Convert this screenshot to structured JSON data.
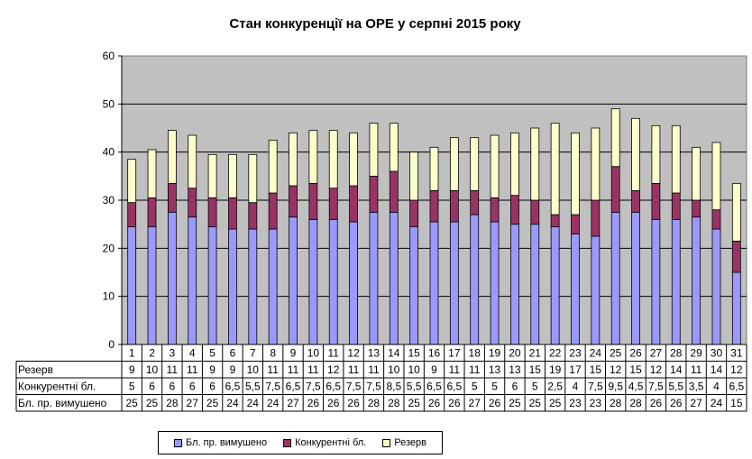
{
  "chart_data": {
    "type": "bar",
    "stacked": true,
    "title": "Стан конкуренції на ОРЕ  у серпні 2015 року",
    "ylim": [
      0,
      60
    ],
    "yticks": [
      0,
      10,
      20,
      30,
      40,
      50,
      60
    ],
    "grid": true,
    "legend_placement": "bottom",
    "categories": [
      "1",
      "2",
      "3",
      "4",
      "5",
      "6",
      "7",
      "8",
      "9",
      "10",
      "11",
      "12",
      "13",
      "14",
      "15",
      "16",
      "17",
      "18",
      "19",
      "20",
      "21",
      "22",
      "23",
      "24",
      "25",
      "26",
      "27",
      "28",
      "29",
      "30",
      "31"
    ],
    "series": [
      {
        "name": "Бл. пр. вимушено",
        "color": "#9999ff",
        "values": [
          24.5,
          24.5,
          27.5,
          26.5,
          24.5,
          24,
          24,
          24,
          26.5,
          26,
          26,
          25.5,
          27.5,
          27.5,
          24.5,
          25.5,
          25.5,
          27,
          25.5,
          25,
          25,
          24.5,
          23,
          22.5,
          27.5,
          27.5,
          26,
          26,
          26.5,
          24,
          15
        ],
        "table_labels": [
          "25",
          "25",
          "28",
          "27",
          "25",
          "24",
          "24",
          "24",
          "27",
          "26",
          "26",
          "26",
          "28",
          "28",
          "25",
          "26",
          "26",
          "27",
          "26",
          "25",
          "25",
          "25",
          "23",
          "23",
          "28",
          "28",
          "26",
          "26",
          "27",
          "24",
          "15"
        ]
      },
      {
        "name": "Конкурентні бл.",
        "color": "#993366",
        "values": [
          5,
          6,
          6,
          6,
          6,
          6.5,
          5.5,
          7.5,
          6.5,
          7.5,
          6.5,
          7.5,
          7.5,
          8.5,
          5.5,
          6.5,
          6.5,
          5,
          5,
          6,
          5,
          2.5,
          4,
          7.5,
          9.5,
          4.5,
          7.5,
          5.5,
          3.5,
          4,
          6.5
        ],
        "table_labels": [
          "5",
          "6",
          "6",
          "6",
          "6",
          "6,5",
          "5,5",
          "7,5",
          "6,5",
          "7,5",
          "6,5",
          "7,5",
          "7,5",
          "8,5",
          "5,5",
          "6,5",
          "6,5",
          "5",
          "5",
          "6",
          "5",
          "2,5",
          "4",
          "7,5",
          "9,5",
          "4,5",
          "7,5",
          "5,5",
          "3,5",
          "4",
          "6,5"
        ]
      },
      {
        "name": "Резерв",
        "color": "#ffffcc",
        "values": [
          9,
          10,
          11,
          11,
          9,
          9,
          10,
          11,
          11,
          11,
          12,
          11,
          11,
          10,
          10,
          9,
          11,
          11,
          13,
          13,
          15,
          19,
          17,
          15,
          12,
          15,
          12,
          14,
          11,
          14,
          12
        ],
        "table_labels": [
          "9",
          "10",
          "11",
          "11",
          "9",
          "9",
          "10",
          "11",
          "11",
          "11",
          "12",
          "11",
          "11",
          "10",
          "10",
          "9",
          "11",
          "11",
          "13",
          "13",
          "15",
          "19",
          "17",
          "15",
          "12",
          "15",
          "12",
          "14",
          "11",
          "14",
          "12"
        ]
      }
    ],
    "table_row_order": [
      2,
      1,
      0
    ]
  }
}
